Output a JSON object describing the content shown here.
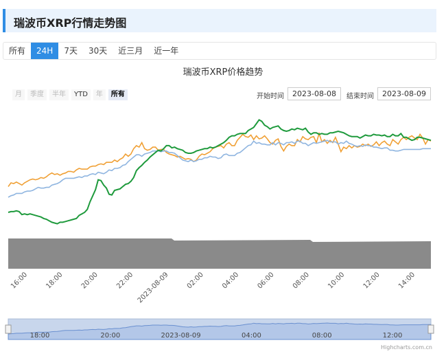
{
  "header": {
    "title": "瑞波币XRP行情走势图"
  },
  "tabs": [
    {
      "label": "所有",
      "active": false
    },
    {
      "label": "24H",
      "active": true
    },
    {
      "label": "7天",
      "active": false
    },
    {
      "label": "30天",
      "active": false
    },
    {
      "label": "近三月",
      "active": false
    },
    {
      "label": "近一年",
      "active": false
    }
  ],
  "range_selector": {
    "buttons": [
      {
        "label": "月",
        "enabled": false,
        "selected": false
      },
      {
        "label": "季度",
        "enabled": false,
        "selected": false
      },
      {
        "label": "半年",
        "enabled": false,
        "selected": false
      },
      {
        "label": "YTD",
        "enabled": true,
        "selected": false
      },
      {
        "label": "年",
        "enabled": false,
        "selected": false
      },
      {
        "label": "所有",
        "enabled": true,
        "selected": true
      }
    ],
    "from_label": "开始时间",
    "from_value": "2023-08-08",
    "to_label": "结束时间",
    "to_value": "2023-08-09"
  },
  "credit": "Highcharts.com.cn",
  "chart_data": {
    "type": "line",
    "title": "瑞波币XRP价格趋势",
    "x_ticks": [
      "16:00",
      "18:00",
      "20:00",
      "22:00",
      "2023-08-09",
      "02:00",
      "04:00",
      "06:00",
      "08:00",
      "10:00",
      "12:00",
      "14:00"
    ],
    "navigator_ticks": [
      "18:00",
      "20:00",
      "2023-08-09",
      "04:00",
      "08:00",
      "12:00"
    ],
    "grid": false,
    "legend": "none",
    "colors": {
      "green": "#1e9a3c",
      "orange": "#f0a035",
      "blue": "#8fb5e0",
      "volume": "#8a8a8a",
      "navigator_fill": "#c8d6ec",
      "navigator_line": "#6a90d0"
    },
    "series": [
      {
        "color": "#f0a035",
        "values": [
          52,
          47,
          48,
          46,
          48,
          50,
          47,
          45,
          43,
          42,
          43,
          42,
          40,
          41,
          39,
          36,
          34,
          36,
          35,
          37,
          35,
          34,
          32,
          32,
          33,
          30,
          28,
          29,
          29,
          29,
          26,
          25,
          25,
          23,
          22,
          23,
          20,
          20,
          20,
          17,
          19,
          16,
          14,
          9,
          12,
          9,
          2,
          -2,
          0,
          -6,
          2,
          4,
          3,
          0,
          0,
          4,
          3,
          3,
          7,
          9,
          10,
          11,
          13,
          12,
          14,
          16,
          15,
          16,
          19,
          17,
          12,
          9,
          10,
          8,
          6,
          2,
          0,
          -1,
          -2,
          1,
          -4,
          -6,
          -2,
          -2,
          -9,
          -13,
          -17,
          -14,
          -13,
          -16,
          -10,
          -15,
          -11,
          -12,
          -15,
          -11,
          -6,
          -4,
          -9,
          -11,
          -1,
          5,
          -1,
          -4,
          -2,
          -2,
          -10,
          -7,
          -14,
          -11,
          -10,
          -13,
          -14,
          -6,
          -18,
          -7,
          -10,
          -5,
          -9,
          -6,
          -13,
          -4,
          6,
          0,
          2,
          -2,
          1,
          -2,
          0,
          -1,
          -4,
          -2,
          -4,
          -1,
          -3,
          -7,
          -2,
          -6,
          -8,
          -4,
          -2,
          -10,
          -7,
          -4,
          -10,
          -13,
          -10,
          -13,
          -15,
          -12,
          -10,
          -17,
          -12,
          -4,
          -10,
          -8
        ]
      },
      {
        "color": "#8fb5e0",
        "values": [
          66,
          64,
          63,
          61,
          61,
          61,
          59,
          58,
          58,
          57,
          55,
          53,
          54,
          54,
          53,
          53,
          50,
          49,
          48,
          46,
          43,
          41,
          41,
          41,
          41,
          40,
          39,
          40,
          38,
          38,
          36,
          35,
          36,
          33,
          34,
          35,
          33,
          30,
          31,
          28,
          28,
          27,
          24,
          23,
          19,
          16,
          13,
          10,
          10,
          12,
          9,
          8,
          7,
          5,
          5,
          5,
          6,
          5,
          5,
          7,
          7,
          8,
          11,
          14,
          17,
          18,
          19,
          17,
          19,
          18,
          16,
          16,
          14,
          14,
          12,
          13,
          13,
          15,
          14,
          10,
          9,
          11,
          11,
          11,
          8,
          7,
          4,
          1,
          -2,
          -3,
          -8,
          -5,
          -6,
          -4,
          -4,
          -3,
          -3,
          -6,
          -3,
          -6,
          -5,
          -3,
          -6,
          -6,
          -7,
          -5,
          -8,
          -8,
          -5,
          -5,
          -2,
          -4,
          -6,
          -5,
          -6,
          -7,
          -8,
          -9,
          -7,
          -7,
          -7,
          -4,
          -6,
          -5,
          -8,
          -5,
          -4,
          -2,
          -1,
          -2,
          -1,
          -3,
          -2,
          -2,
          0,
          0,
          1,
          2,
          1,
          1,
          4,
          4,
          5,
          5,
          4,
          3,
          3,
          3,
          3,
          3,
          3,
          3,
          2,
          2,
          2,
          2
        ]
      },
      {
        "color": "#1e9a3c",
        "values": [
          86,
          85,
          85,
          84,
          85,
          89,
          88,
          89,
          88,
          89,
          90,
          91,
          92,
          94,
          95,
          97,
          99,
          100,
          101,
          99,
          99,
          98,
          97,
          96,
          95,
          94,
          90,
          88,
          86,
          82,
          72,
          64,
          56,
          43,
          44,
          50,
          54,
          62,
          63,
          57,
          56,
          55,
          52,
          49,
          48,
          45,
          40,
          31,
          27,
          24,
          20,
          17,
          13,
          10,
          7,
          4,
          5,
          2,
          -2,
          -2,
          1,
          0,
          2,
          3,
          4,
          7,
          8,
          8,
          7,
          5,
          4,
          3,
          2,
          2,
          0,
          1,
          0,
          -2,
          -4,
          -6,
          -9,
          -13,
          -15,
          -15,
          -17,
          -18,
          -18,
          -18,
          -22,
          -24,
          -26,
          -31,
          -36,
          -34,
          -29,
          -27,
          -24,
          -26,
          -27,
          -28,
          -24,
          -22,
          -21,
          -22,
          -24,
          -23,
          -25,
          -24,
          -23,
          -25,
          -20,
          -17,
          -19,
          -19,
          -17,
          -18,
          -17,
          -17,
          -19,
          -19,
          -20,
          -21,
          -20,
          -19,
          -17,
          -15,
          -14,
          -14,
          -14,
          -12,
          -14,
          -16,
          -15,
          -15,
          -17,
          -16,
          -16,
          -15,
          -16,
          -14,
          -14,
          -17,
          -15,
          -15,
          -18,
          -13,
          -13,
          -11,
          -9,
          -10,
          -13,
          -13,
          -12,
          -11,
          -10,
          -9
        ]
      },
      {
        "color": "#8a8a8a",
        "name": "",
        "values": []
      }
    ]
  }
}
